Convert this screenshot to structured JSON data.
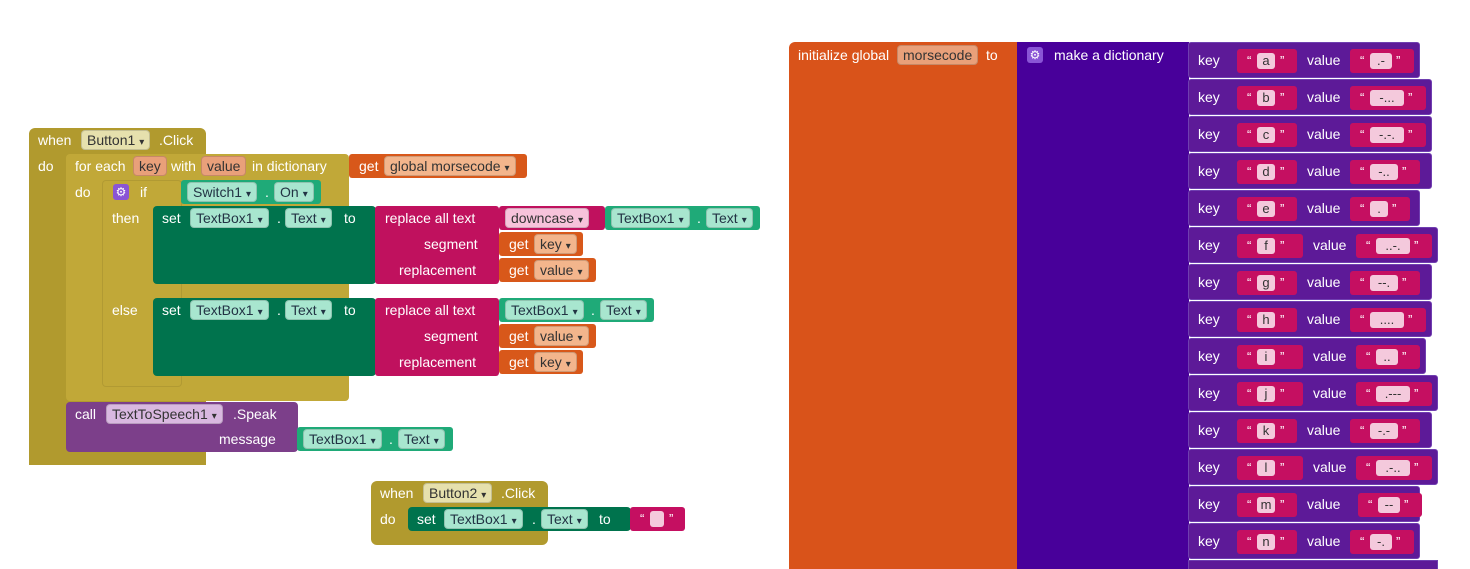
{
  "button1_event": {
    "when": "when",
    "component": "Button1",
    "event": ".Click",
    "do": "do",
    "foreach": {
      "for_each": "for each",
      "key_var": "key",
      "with": "with",
      "value_var": "value",
      "in_dictionary": "in dictionary",
      "get": "get",
      "dict_var": "global morsecode"
    },
    "inner_do": "do",
    "if_block": {
      "if": "if",
      "switch_component": "Switch1",
      "dot": ".",
      "switch_property": "On",
      "then": "then",
      "else": "else"
    },
    "then_set": {
      "set": "set",
      "component": "TextBox1",
      "dot": ".",
      "property": "Text",
      "to": "to",
      "replace_all": "replace all text",
      "downcase": "downcase",
      "src_component": "TextBox1",
      "src_property": "Text",
      "segment": "segment",
      "segment_get": "get",
      "segment_var": "key",
      "replacement": "replacement",
      "replacement_get": "get",
      "replacement_var": "value"
    },
    "else_set": {
      "set": "set",
      "component": "TextBox1",
      "dot": ".",
      "property": "Text",
      "to": "to",
      "replace_all": "replace all text",
      "src_component": "TextBox1",
      "src_property": "Text",
      "segment": "segment",
      "segment_get": "get",
      "segment_var": "value",
      "replacement": "replacement",
      "replacement_get": "get",
      "replacement_var": "key"
    },
    "call": {
      "call": "call",
      "component": "TextToSpeech1",
      "method": ".Speak",
      "message": "message",
      "msg_component": "TextBox1",
      "dot": ".",
      "msg_property": "Text"
    }
  },
  "button2_event": {
    "when": "when",
    "component": "Button2",
    "event": ".Click",
    "do": "do",
    "set": "set",
    "set_component": "TextBox1",
    "dot": ".",
    "set_property": "Text",
    "to": "to",
    "string_value": ""
  },
  "global_init": {
    "initialize": "initialize global",
    "var_name": "morsecode",
    "to": "to",
    "make_dict": "make a dictionary",
    "key_label": "key",
    "value_label": "value",
    "pairs": [
      {
        "key": "a",
        "value": ".-"
      },
      {
        "key": "b",
        "value": "-..."
      },
      {
        "key": "c",
        "value": "-.-."
      },
      {
        "key": "d",
        "value": "-.."
      },
      {
        "key": "e",
        "value": "."
      },
      {
        "key": "f",
        "value": "..-."
      },
      {
        "key": "g",
        "value": "--."
      },
      {
        "key": "h",
        "value": "...."
      },
      {
        "key": "i",
        "value": ".."
      },
      {
        "key": "j",
        "value": ".---"
      },
      {
        "key": "k",
        "value": "-.-"
      },
      {
        "key": "l",
        "value": ".-.."
      },
      {
        "key": "m",
        "value": "--"
      },
      {
        "key": "n",
        "value": "-."
      }
    ]
  },
  "icons": {
    "gear": "gear-icon",
    "dropdown": "dropdown-arrow-icon"
  },
  "colors": {
    "event_olive": "#b19a2e",
    "set_green": "#00734d",
    "component_green": "#1faa78",
    "text_crimson": "#c0115e",
    "variable_orange": "#d8581a",
    "call_purple": "#7c3f8a",
    "dictionary_purple": "#48009a"
  }
}
